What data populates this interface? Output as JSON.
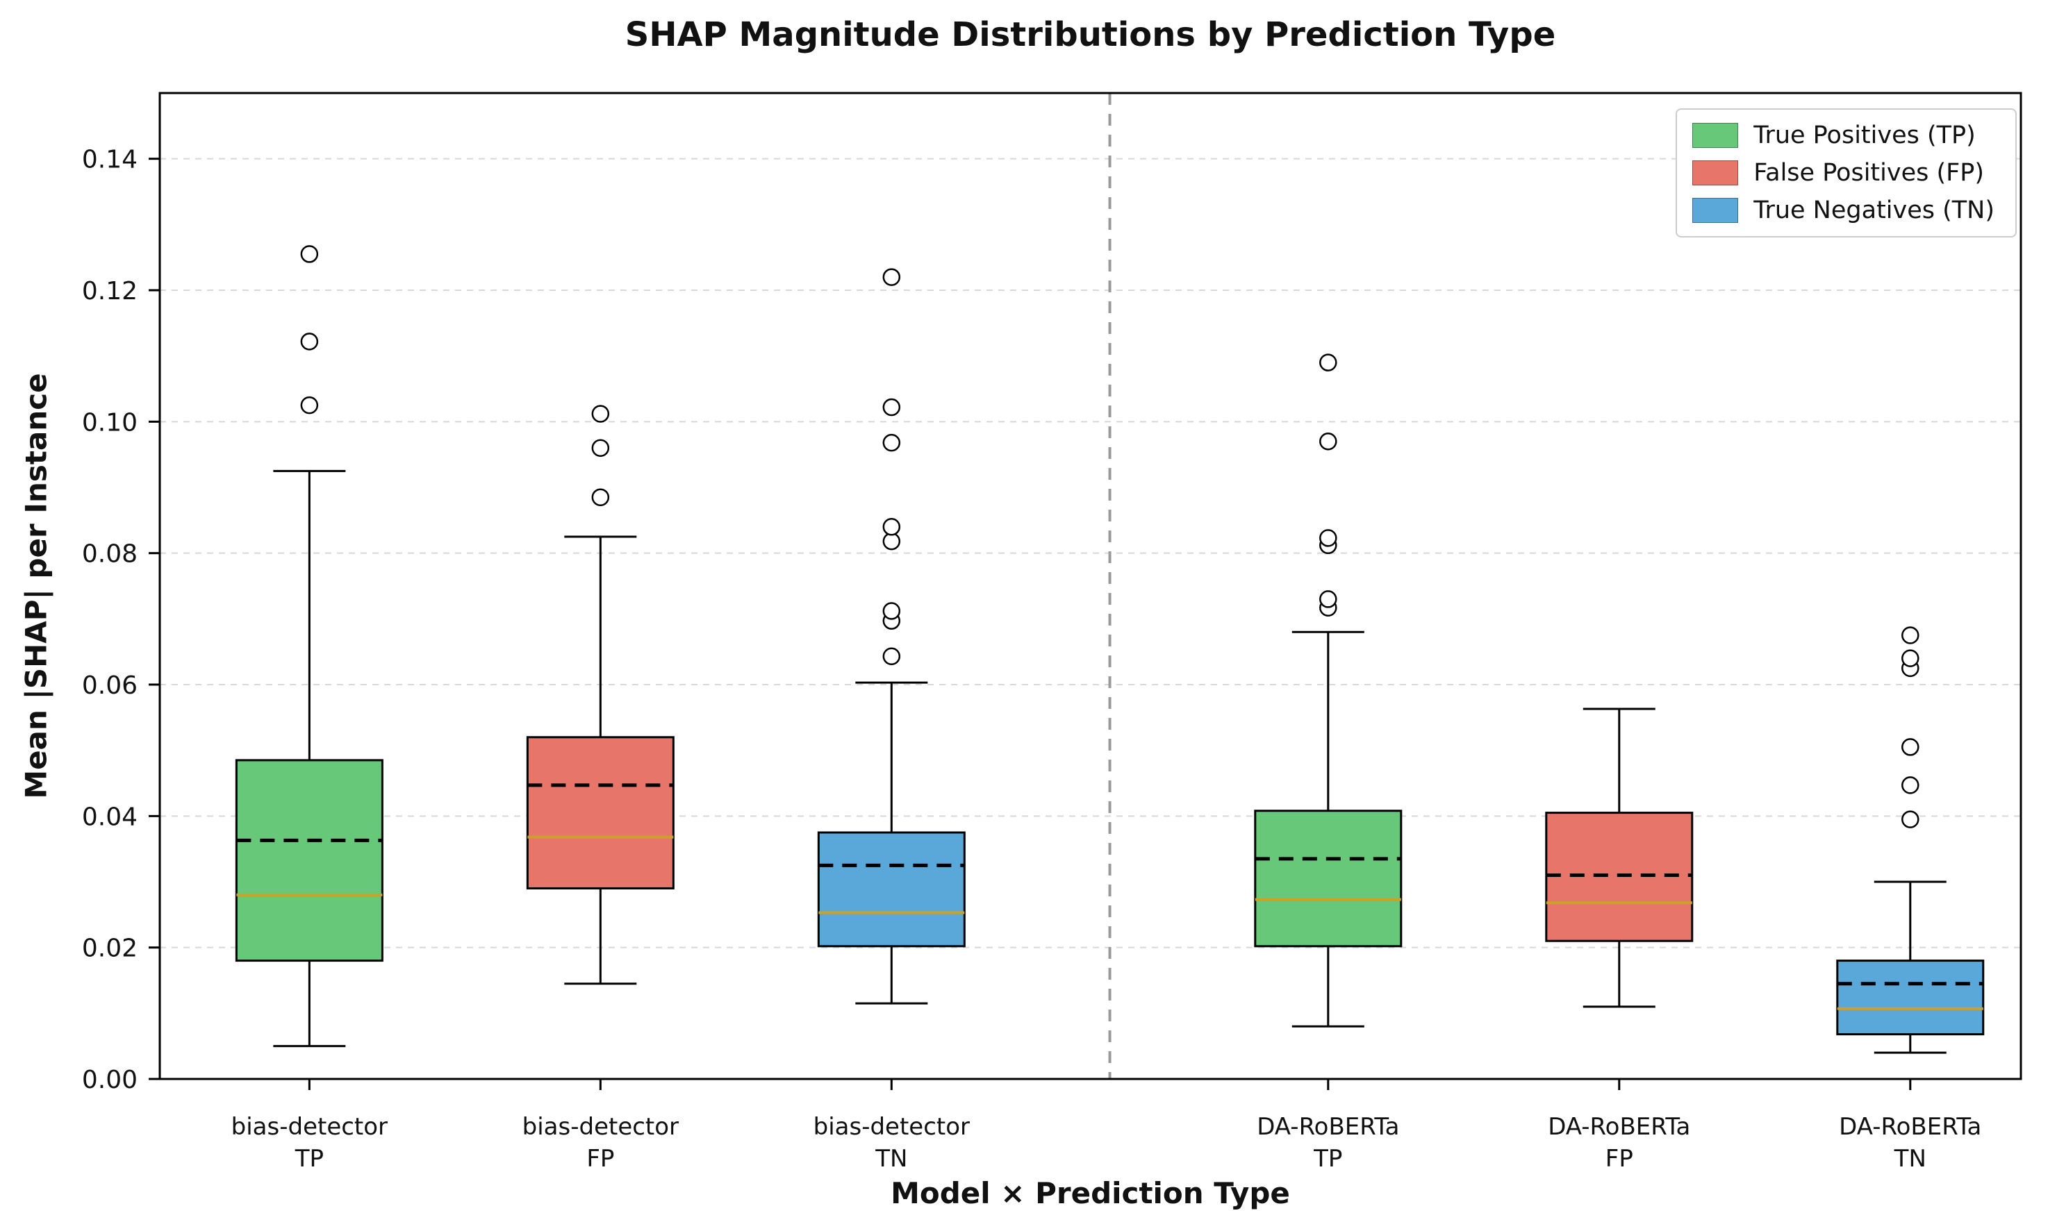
{
  "chart_data": {
    "type": "boxplot",
    "title": "SHAP Magnitude Distributions by Prediction Type",
    "xlabel": "Model × Prediction Type",
    "ylabel": "Mean |SHAP| per Instance",
    "ylim": [
      0,
      0.15
    ],
    "yticks": [
      0.0,
      0.02,
      0.04,
      0.06,
      0.08,
      0.1,
      0.12,
      0.14
    ],
    "xlim": [
      0.486,
      6.88
    ],
    "separator_x": 3.75,
    "grid": "horizontal-dashed",
    "legend": {
      "position": "upper-right",
      "items": [
        {
          "label": "True Positives (TP)",
          "color": "#66c878"
        },
        {
          "label": "False Positives (FP)",
          "color": "#e8756a"
        },
        {
          "label": "True Negatives (TN)",
          "color": "#5aa7d9"
        }
      ]
    },
    "colors": {
      "box_edge": "#000000",
      "median_line": "#c9a227",
      "mean_line": "#000000",
      "grid": "#d8d8d8",
      "separator": "#9a9a9a",
      "outlier_stroke": "#000000"
    },
    "boxes": [
      {
        "tick_label": [
          "bias-detector",
          "TP"
        ],
        "position": 1,
        "color": "#66c878",
        "whisker_low": 0.005,
        "q1": 0.018,
        "median": 0.028,
        "mean": 0.0363,
        "q3": 0.0485,
        "whisker_high": 0.0925,
        "outliers": [
          0.1025,
          0.1122,
          0.1255
        ]
      },
      {
        "tick_label": [
          "bias-detector",
          "FP"
        ],
        "position": 2,
        "color": "#e8756a",
        "whisker_low": 0.0145,
        "q1": 0.029,
        "median": 0.0368,
        "mean": 0.0447,
        "q3": 0.052,
        "whisker_high": 0.0825,
        "outliers": [
          0.0885,
          0.096,
          0.1012
        ]
      },
      {
        "tick_label": [
          "bias-detector",
          "TN"
        ],
        "position": 3,
        "color": "#5aa7d9",
        "whisker_low": 0.0115,
        "q1": 0.0202,
        "median": 0.0253,
        "mean": 0.0325,
        "q3": 0.0375,
        "whisker_high": 0.0603,
        "outliers": [
          0.0643,
          0.0697,
          0.0712,
          0.0818,
          0.084,
          0.0968,
          0.1022,
          0.122
        ]
      },
      {
        "tick_label": [
          "DA-RoBERTa",
          "TP"
        ],
        "position": 4.5,
        "color": "#66c878",
        "whisker_low": 0.008,
        "q1": 0.0202,
        "median": 0.0273,
        "mean": 0.0335,
        "q3": 0.0408,
        "whisker_high": 0.068,
        "outliers": [
          0.0717,
          0.073,
          0.0812,
          0.0823,
          0.097,
          0.109
        ]
      },
      {
        "tick_label": [
          "DA-RoBERTa",
          "FP"
        ],
        "position": 5.5,
        "color": "#e8756a",
        "whisker_low": 0.011,
        "q1": 0.021,
        "median": 0.0268,
        "mean": 0.031,
        "q3": 0.0405,
        "whisker_high": 0.0563,
        "outliers": []
      },
      {
        "tick_label": [
          "DA-RoBERTa",
          "TN"
        ],
        "position": 6.5,
        "color": "#5aa7d9",
        "whisker_low": 0.004,
        "q1": 0.0068,
        "median": 0.0107,
        "mean": 0.0145,
        "q3": 0.018,
        "whisker_high": 0.03,
        "outliers": [
          0.0395,
          0.0447,
          0.0505,
          0.0625,
          0.064,
          0.0675
        ]
      }
    ]
  }
}
